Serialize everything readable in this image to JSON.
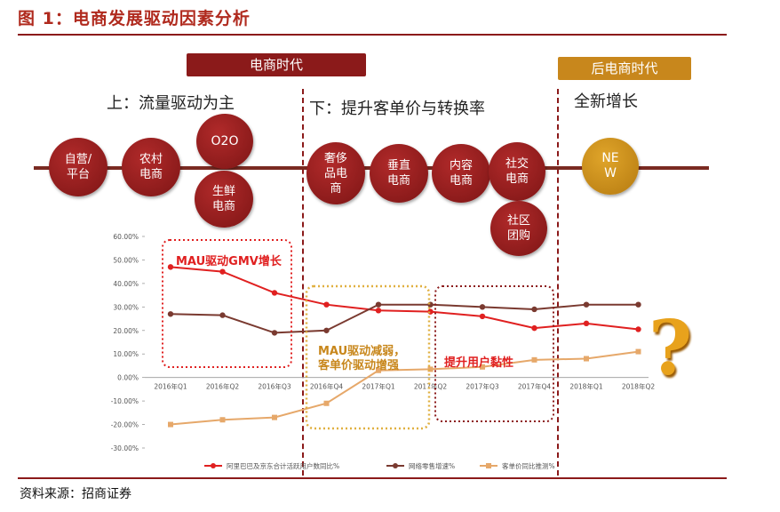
{
  "figure_title": "图 1：电商发展驱动因素分析",
  "source": "资料来源：招商证券",
  "eras": {
    "ecommerce": "电商时代",
    "post_ecommerce": "后电商时代"
  },
  "phases": {
    "first": "上：流量驱动为主",
    "second": "下：提升客单价与转换率",
    "third": "全新增长"
  },
  "bubbles": [
    {
      "label": "自营/\n平台",
      "color": "red"
    },
    {
      "label": "农村\n电商",
      "color": "red"
    },
    {
      "label": "O2O",
      "color": "red"
    },
    {
      "label": "生鲜\n电商",
      "color": "red"
    },
    {
      "label": "奢侈\n品电\n商",
      "color": "red"
    },
    {
      "label": "垂直\n电商",
      "color": "red"
    },
    {
      "label": "内容\n电商",
      "color": "red"
    },
    {
      "label": "社交\n电商",
      "color": "red"
    },
    {
      "label": "社区\n团购",
      "color": "red"
    },
    {
      "label": "NE\nW",
      "color": "gold"
    }
  ],
  "annotations": {
    "box1": "MAU驱动GMV增长",
    "box2_line1": "MAU驱动减弱，",
    "box2_line2": "客单价驱动增强",
    "box3": "提升用户黏性"
  },
  "colors": {
    "dark_red": "#8b1a1a",
    "red_series": "#e02020",
    "brown_series": "#7a3a30",
    "tan_series": "#e6a86a",
    "gold": "#c8871c"
  },
  "chart_data": {
    "type": "line",
    "categories": [
      "2016年Q1",
      "2016年Q2",
      "2016年Q3",
      "2016年Q4",
      "2017年Q1",
      "2017年Q2",
      "2017年Q3",
      "2017年Q4",
      "2018年Q1",
      "2018年Q2"
    ],
    "y_ticks": [
      "60.00%",
      "50.00%",
      "40.00%",
      "30.00%",
      "20.00%",
      "10.00%",
      "0.00%",
      "-10.00%",
      "-20.00%",
      "-30.00%"
    ],
    "ylim": [
      -30,
      60
    ],
    "series": [
      {
        "name": "阿里巴巴及京东合计活跃用户数同比%",
        "color": "#e02020",
        "values": [
          47,
          45,
          36,
          31,
          28.5,
          28,
          26,
          21,
          23,
          20.5
        ]
      },
      {
        "name": "网络零售增速%",
        "color": "#7a3a30",
        "values": [
          27,
          26.5,
          19,
          20,
          31,
          31,
          30,
          29,
          31,
          31
        ]
      },
      {
        "name": "客单价同比推测%",
        "color": "#e6a86a",
        "values": [
          -20,
          -18,
          -17,
          -11,
          3,
          3.5,
          4.5,
          7.5,
          8,
          11
        ]
      }
    ]
  }
}
